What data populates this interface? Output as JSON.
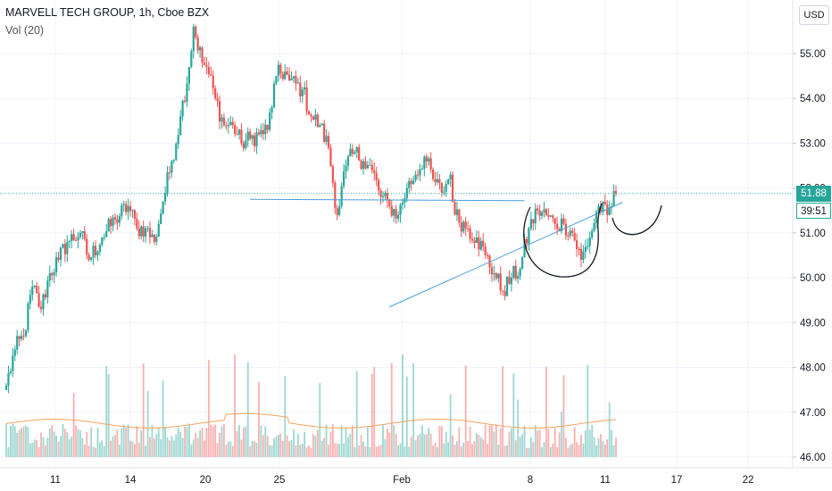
{
  "legend": {
    "symbol_line": "MARVELL TECH GROUP, 1h, Cboe BZX",
    "indicator_line": "Vol (20)"
  },
  "currency_button": "USD",
  "price_label": "51.88",
  "countdown_label": "39:51",
  "colors": {
    "up": "#26a69a",
    "down": "#ef5350",
    "volume_ma": "#f7a35c",
    "trendline": "#4a9fd8",
    "drawing": "#131722",
    "grid": "#f0f3fa"
  },
  "chart_data": {
    "type": "candlestick",
    "title": "MARVELL TECH GROUP, 1h, Cboe BZX",
    "x_tick_labels": [
      "11",
      "14",
      "20",
      "25",
      "Feb",
      "8",
      "11",
      "17",
      "22"
    ],
    "y_tick_labels": [
      "46.00",
      "47.00",
      "48.00",
      "49.00",
      "50.00",
      "51.00",
      "52.00",
      "53.00",
      "54.00",
      "55.00"
    ],
    "ylim": [
      45.9,
      56.2
    ],
    "last_price": 51.88,
    "grid": true,
    "legend_position": "top-left",
    "anchors": [
      [
        0,
        47.6
      ],
      [
        4,
        48.4
      ],
      [
        8,
        48.7
      ],
      [
        12,
        49.8
      ],
      [
        16,
        49.3
      ],
      [
        20,
        50.1
      ],
      [
        24,
        50.4
      ],
      [
        28,
        50.8
      ],
      [
        34,
        51.0
      ],
      [
        38,
        50.4
      ],
      [
        44,
        50.9
      ],
      [
        50,
        51.3
      ],
      [
        56,
        51.6
      ],
      [
        60,
        51.1
      ],
      [
        64,
        51.1
      ],
      [
        68,
        50.8
      ],
      [
        72,
        51.7
      ],
      [
        76,
        52.6
      ],
      [
        80,
        53.6
      ],
      [
        84,
        54.7
      ],
      [
        86,
        55.6
      ],
      [
        90,
        54.8
      ],
      [
        92,
        54.7
      ],
      [
        96,
        54.0
      ],
      [
        100,
        53.4
      ],
      [
        104,
        53.4
      ],
      [
        108,
        53.0
      ],
      [
        112,
        53.1
      ],
      [
        116,
        53.2
      ],
      [
        120,
        53.3
      ],
      [
        124,
        54.5
      ],
      [
        128,
        54.6
      ],
      [
        130,
        54.4
      ],
      [
        136,
        54.2
      ],
      [
        140,
        53.6
      ],
      [
        144,
        53.4
      ],
      [
        148,
        52.9
      ],
      [
        152,
        51.4
      ],
      [
        156,
        52.5
      ],
      [
        160,
        52.8
      ],
      [
        164,
        52.6
      ],
      [
        168,
        52.4
      ],
      [
        172,
        51.8
      ],
      [
        176,
        51.6
      ],
      [
        180,
        51.4
      ],
      [
        184,
        52.0
      ],
      [
        188,
        52.3
      ],
      [
        192,
        52.7
      ],
      [
        196,
        52.2
      ],
      [
        200,
        51.9
      ],
      [
        204,
        52.3
      ],
      [
        206,
        51.4
      ],
      [
        212,
        51.1
      ],
      [
        216,
        50.9
      ],
      [
        220,
        50.5
      ],
      [
        224,
        50.1
      ],
      [
        228,
        49.7
      ],
      [
        232,
        50.0
      ],
      [
        236,
        50.2
      ],
      [
        240,
        51.1
      ],
      [
        244,
        51.5
      ],
      [
        248,
        51.4
      ],
      [
        252,
        51.2
      ],
      [
        256,
        51.2
      ],
      [
        260,
        51.0
      ],
      [
        264,
        50.4
      ],
      [
        268,
        50.9
      ],
      [
        272,
        51.6
      ],
      [
        276,
        51.4
      ],
      [
        280,
        51.88
      ]
    ],
    "bar_count": 281,
    "volume_ma_level": 0.3,
    "trendlines": [
      {
        "name": "resistance",
        "x1": 112,
        "y1": 51.75,
        "x2": 238,
        "y2": 51.72
      },
      {
        "name": "support",
        "x1": 176,
        "y1": 49.35,
        "x2": 283,
        "y2": 51.68
      }
    ]
  }
}
